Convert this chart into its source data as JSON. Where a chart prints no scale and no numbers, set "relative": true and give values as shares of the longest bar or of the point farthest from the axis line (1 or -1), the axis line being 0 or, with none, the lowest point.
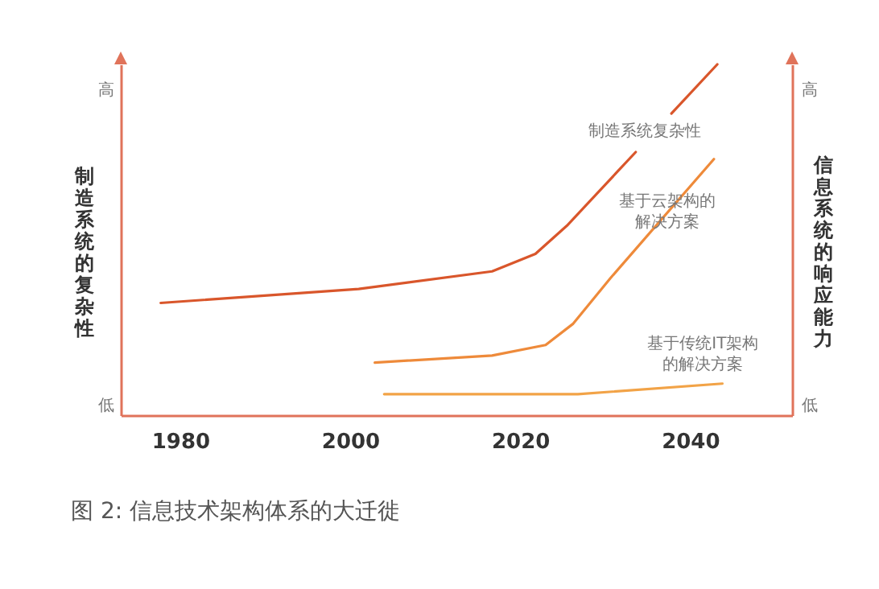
{
  "chart_data": {
    "type": "line",
    "title": "图 2: 信息技术架构体系的大迁徙",
    "ylabel": "制造系统的复杂性",
    "y2label": "信息系统的响应能力",
    "relative": true,
    "xlim": [
      1973,
      2052
    ],
    "xticks": [
      1980,
      2000,
      2020,
      2040
    ],
    "series": [
      {
        "name": "制造系统复杂性",
        "color": "#d9562b",
        "x": [
          1977.7,
          2001.0,
          2016.7,
          2021.8,
          2025.5,
          2033.6,
          2035.7,
          2037.8,
          2043.2
        ],
        "values": [
          0.32,
          0.36,
          0.41,
          0.46,
          0.54,
          0.75,
          null,
          0.86,
          1
        ]
      },
      {
        "name": "基于云架构的解决方案",
        "color": "#ee8a3a",
        "x": [
          2002.9,
          2016.7,
          2023.0,
          2026.2,
          2030.6,
          2042.8
        ],
        "values": [
          0.15,
          0.17,
          0.2,
          0.26,
          0.39,
          0.73
        ]
      },
      {
        "name": "基于传统IT架构的解决方案",
        "color": "#f2a347",
        "x": [
          2004.0,
          2026.8,
          2043.8
        ],
        "values": [
          0.06,
          0.06,
          0.09
        ]
      }
    ],
    "annotations": [
      "高",
      "低",
      "高",
      "低"
    ]
  }
}
